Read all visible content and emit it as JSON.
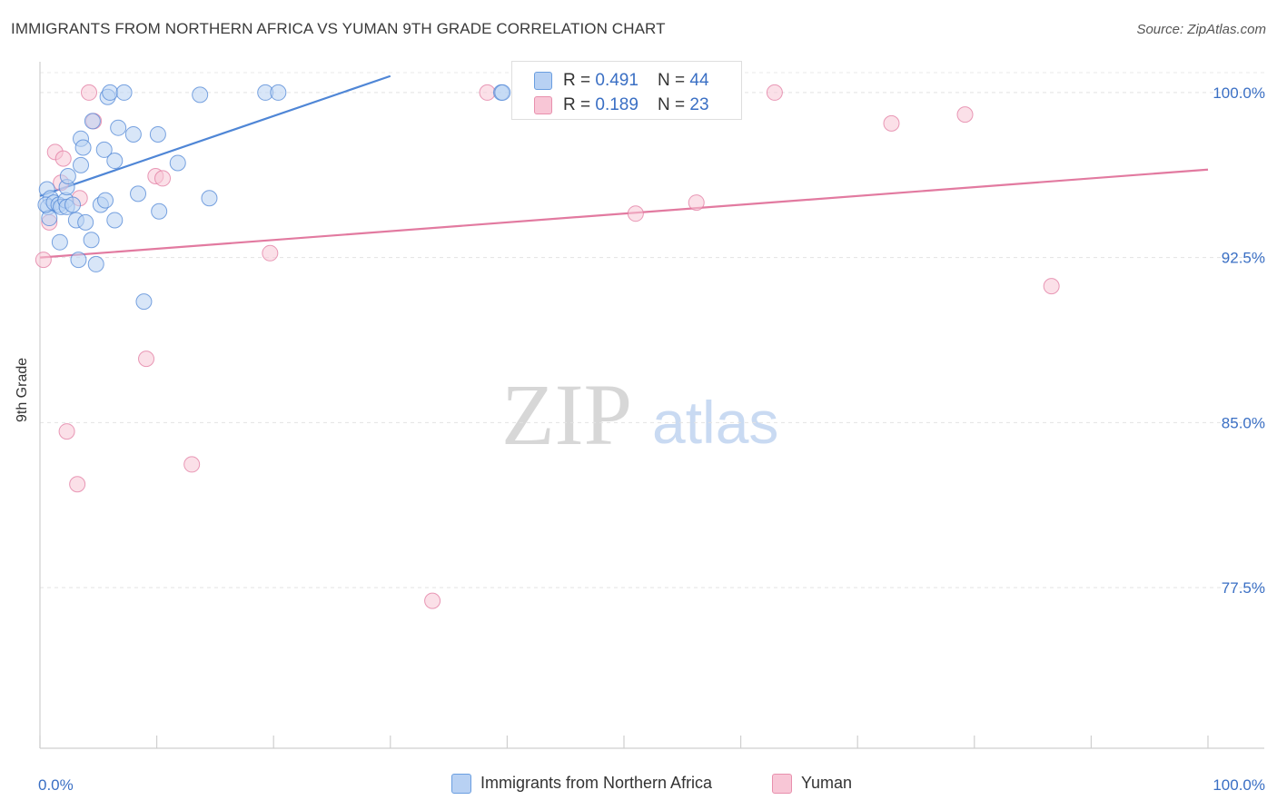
{
  "header": {
    "title": "IMMIGRANTS FROM NORTHERN AFRICA VS YUMAN 9TH GRADE CORRELATION CHART",
    "source": "Source: ZipAtlas.com"
  },
  "watermark": {
    "zip": "ZIP",
    "atlas": "atlas"
  },
  "legend": {
    "rows": [
      {
        "r_label": "R = ",
        "r_value": "0.491",
        "n_label": "N = ",
        "n_value": "44",
        "fill": "#b8d1f3",
        "stroke": "#6a9ee0"
      },
      {
        "r_label": "R = ",
        "r_value": "0.189",
        "n_label": "N = ",
        "n_value": "23",
        "fill": "#f8c6d6",
        "stroke": "#e890ad"
      }
    ]
  },
  "bottom_legend": [
    {
      "label": "Immigrants from Northern Africa",
      "fill": "#b8d1f3",
      "stroke": "#6a9ee0"
    },
    {
      "label": "Yuman",
      "fill": "#f8c6d6",
      "stroke": "#e890ad"
    }
  ],
  "chart_data": {
    "type": "scatter",
    "title": "IMMIGRANTS FROM NORTHERN AFRICA VS YUMAN 9TH GRADE CORRELATION CHART",
    "xlabel": "",
    "ylabel": "9th Grade",
    "xlim": [
      0,
      100
    ],
    "ylim": [
      70.2,
      101.4
    ],
    "x_tick_labels": [
      "0.0%",
      "100.0%"
    ],
    "y_ticks": [
      {
        "value": 100.0,
        "label": "100.0%"
      },
      {
        "value": 92.5,
        "label": "92.5%"
      },
      {
        "value": 85.0,
        "label": "85.0%"
      },
      {
        "value": 77.5,
        "label": "77.5%"
      }
    ],
    "grid": true,
    "legend_position": "top-center",
    "series": [
      {
        "name": "Immigrants from Northern Africa",
        "color": "#4f86d6",
        "fill": "#b8d1f3",
        "trend": {
          "x": [
            0.0,
            30.0
          ],
          "y": [
            95.3,
            100.75
          ]
        },
        "points": [
          [
            0.6,
            95.6
          ],
          [
            0.9,
            95.2
          ],
          [
            0.7,
            94.8
          ],
          [
            0.8,
            94.3
          ],
          [
            0.5,
            94.9
          ],
          [
            1.2,
            95.0
          ],
          [
            1.6,
            94.9
          ],
          [
            1.7,
            93.2
          ],
          [
            1.8,
            94.8
          ],
          [
            2.2,
            95.1
          ],
          [
            2.3,
            95.7
          ],
          [
            2.4,
            96.2
          ],
          [
            2.3,
            94.8
          ],
          [
            2.8,
            94.9
          ],
          [
            3.1,
            94.2
          ],
          [
            3.3,
            92.4
          ],
          [
            3.5,
            96.7
          ],
          [
            3.5,
            97.9
          ],
          [
            3.7,
            97.5
          ],
          [
            3.9,
            94.1
          ],
          [
            4.4,
            93.3
          ],
          [
            4.5,
            98.7
          ],
          [
            4.8,
            92.2
          ],
          [
            5.2,
            94.9
          ],
          [
            5.5,
            97.4
          ],
          [
            5.6,
            95.1
          ],
          [
            5.8,
            99.8
          ],
          [
            6.0,
            100.0
          ],
          [
            6.4,
            96.9
          ],
          [
            6.4,
            94.2
          ],
          [
            6.7,
            98.4
          ],
          [
            7.2,
            100.0
          ],
          [
            8.0,
            98.1
          ],
          [
            8.4,
            95.4
          ],
          [
            8.9,
            90.5
          ],
          [
            10.1,
            98.1
          ],
          [
            10.2,
            94.6
          ],
          [
            11.8,
            96.8
          ],
          [
            13.7,
            99.9
          ],
          [
            14.5,
            95.2
          ],
          [
            19.3,
            100.0
          ],
          [
            20.4,
            100.0
          ],
          [
            39.5,
            100.0
          ],
          [
            39.6,
            100.0
          ]
        ]
      },
      {
        "name": "Yuman",
        "color": "#e27aa0",
        "fill": "#f8c6d6",
        "trend": {
          "x": [
            0.0,
            100.0
          ],
          "y": [
            92.5,
            96.5
          ]
        },
        "points": [
          [
            0.3,
            92.4
          ],
          [
            0.8,
            94.1
          ],
          [
            1.3,
            97.3
          ],
          [
            1.8,
            95.9
          ],
          [
            2.0,
            97.0
          ],
          [
            2.3,
            84.6
          ],
          [
            3.2,
            82.2
          ],
          [
            3.4,
            95.2
          ],
          [
            4.2,
            100.0
          ],
          [
            4.6,
            98.7
          ],
          [
            9.1,
            87.9
          ],
          [
            9.9,
            96.2
          ],
          [
            10.5,
            96.1
          ],
          [
            13.0,
            83.1
          ],
          [
            19.7,
            92.7
          ],
          [
            33.6,
            76.9
          ],
          [
            38.3,
            100.0
          ],
          [
            51.0,
            94.5
          ],
          [
            56.2,
            95.0
          ],
          [
            62.9,
            100.0
          ],
          [
            72.9,
            98.6
          ],
          [
            79.2,
            99.0
          ],
          [
            86.6,
            91.2
          ]
        ]
      }
    ]
  }
}
